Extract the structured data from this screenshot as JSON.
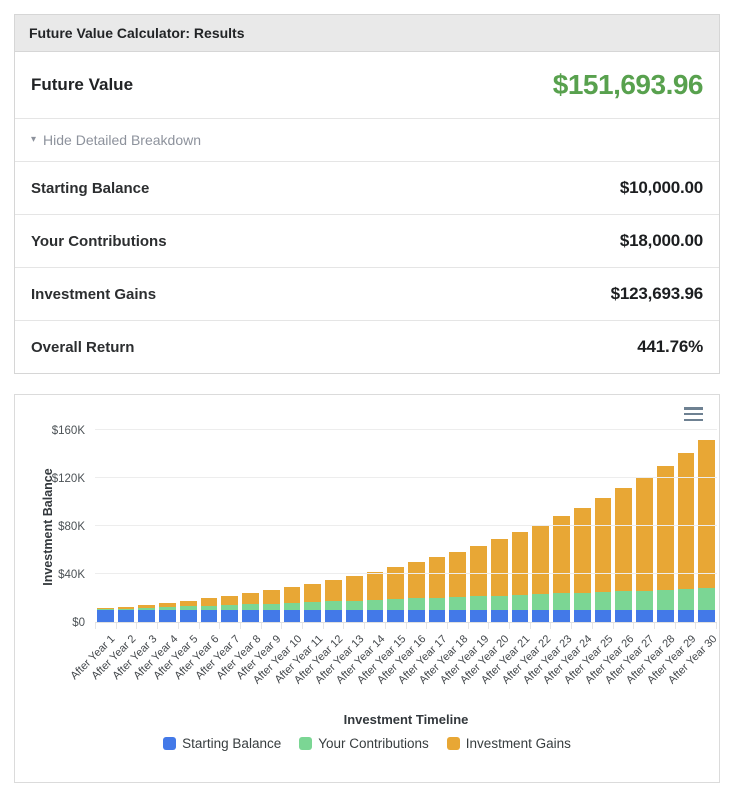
{
  "results_card": {
    "header": "Future Value Calculator: Results",
    "future_value": {
      "label": "Future Value",
      "value": "$151,693.96"
    },
    "toggle": {
      "label": "Hide Detailed Breakdown",
      "icon": "caret-down"
    },
    "rows": [
      {
        "label": "Starting Balance",
        "value": "$10,000.00"
      },
      {
        "label": "Your Contributions",
        "value": "$18,000.00"
      },
      {
        "label": "Investment Gains",
        "value": "$123,693.96"
      },
      {
        "label": "Overall Return",
        "value": "441.76%"
      }
    ]
  },
  "colors": {
    "future_value_green": "#58a14e",
    "starting_balance_blue": "#4379e8",
    "contributions_green": "#7bd694",
    "gains_orange": "#e8a735"
  },
  "chart_data": {
    "type": "bar",
    "stacked": true,
    "xlabel": "Investment Timeline",
    "ylabel": "Investment Balance",
    "ylim": [
      0,
      160000
    ],
    "ytick_labels": [
      "$0",
      "$40K",
      "$80K",
      "$120K",
      "$160K"
    ],
    "grid": true,
    "legend_position": "bottom",
    "menu_icon": "hamburger",
    "categories": [
      "After Year 1",
      "After Year 2",
      "After Year 3",
      "After Year 4",
      "After Year 5",
      "After Year 6",
      "After Year 7",
      "After Year 8",
      "After Year 9",
      "After Year 10",
      "After Year 11",
      "After Year 12",
      "After Year 13",
      "After Year 14",
      "After Year 15",
      "After Year 16",
      "After Year 17",
      "After Year 18",
      "After Year 19",
      "After Year 20",
      "After Year 21",
      "After Year 22",
      "After Year 23",
      "After Year 24",
      "After Year 25",
      "After Year 26",
      "After Year 27",
      "After Year 28",
      "After Year 29",
      "After Year 30"
    ],
    "series": [
      {
        "name": "Starting Balance",
        "color": "#4379e8",
        "values": [
          10000,
          10000,
          10000,
          10000,
          10000,
          10000,
          10000,
          10000,
          10000,
          10000,
          10000,
          10000,
          10000,
          10000,
          10000,
          10000,
          10000,
          10000,
          10000,
          10000,
          10000,
          10000,
          10000,
          10000,
          10000,
          10000,
          10000,
          10000,
          10000,
          10000
        ]
      },
      {
        "name": "Your Contributions",
        "color": "#7bd694",
        "values": [
          600,
          1200,
          1800,
          2400,
          3000,
          3600,
          4200,
          4800,
          5400,
          6000,
          6600,
          7200,
          7800,
          8400,
          9000,
          9600,
          10200,
          10800,
          11400,
          12000,
          12600,
          13200,
          13800,
          14400,
          15000,
          15600,
          16200,
          16800,
          17400,
          18000
        ]
      },
      {
        "name": "Investment Gains",
        "color": "#e8a735",
        "values": [
          756,
          1614,
          2584,
          3671,
          4886,
          6238,
          7738,
          9396,
          11226,
          13239,
          15449,
          17872,
          20523,
          23421,
          26582,
          30028,
          33780,
          37861,
          42296,
          47111,
          52336,
          57401,
          64140,
          70788,
          77985,
          85770,
          94189,
          103291,
          113126,
          123694
        ]
      }
    ]
  }
}
